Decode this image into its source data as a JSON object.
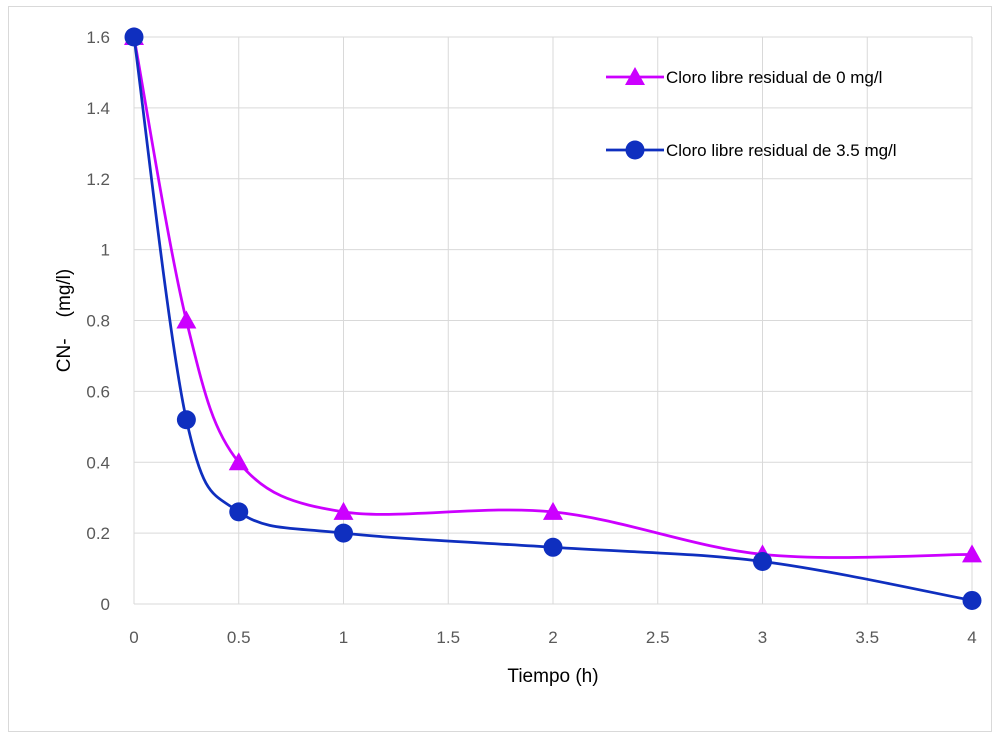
{
  "chart_data": {
    "type": "line",
    "xlabel": "Tiempo (h)",
    "ylabel": "CN-    (mg/l)",
    "xlim": [
      0,
      4
    ],
    "ylim": [
      0,
      1.6
    ],
    "x_ticks": [
      "0",
      "0.5",
      "1",
      "1.5",
      "2",
      "2.5",
      "3",
      "3.5",
      "4"
    ],
    "y_ticks": [
      "0",
      "0.2",
      "0.4",
      "0.6",
      "0.8",
      "1",
      "1.2",
      "1.4",
      "1.6"
    ],
    "grid": true,
    "legend_position": "top-right",
    "smooth": true,
    "series": [
      {
        "name": "Cloro libre residual de 0 mg/l",
        "color": "#cc00ff",
        "marker": "triangle",
        "x": [
          0,
          0.25,
          0.5,
          1,
          2,
          3,
          4
        ],
        "y": [
          1.6,
          0.8,
          0.4,
          0.26,
          0.26,
          0.14,
          0.14
        ]
      },
      {
        "name": "Cloro libre residual de 3.5 mg/l",
        "color": "#0f2fbf",
        "marker": "circle",
        "x": [
          0,
          0.25,
          0.5,
          1,
          2,
          3,
          4
        ],
        "y": [
          1.6,
          0.52,
          0.26,
          0.2,
          0.16,
          0.12,
          0.01
        ]
      }
    ]
  }
}
